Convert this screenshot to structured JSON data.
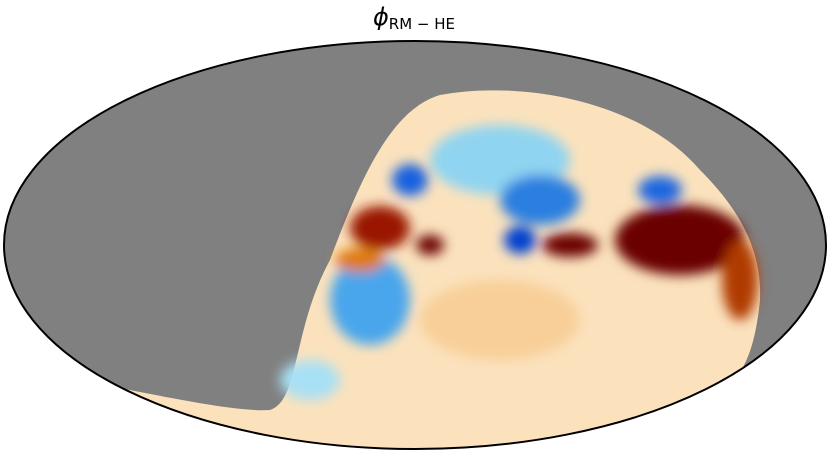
{
  "title": {
    "symbol": "ϕ",
    "subscript": "RM − HE"
  }
}
